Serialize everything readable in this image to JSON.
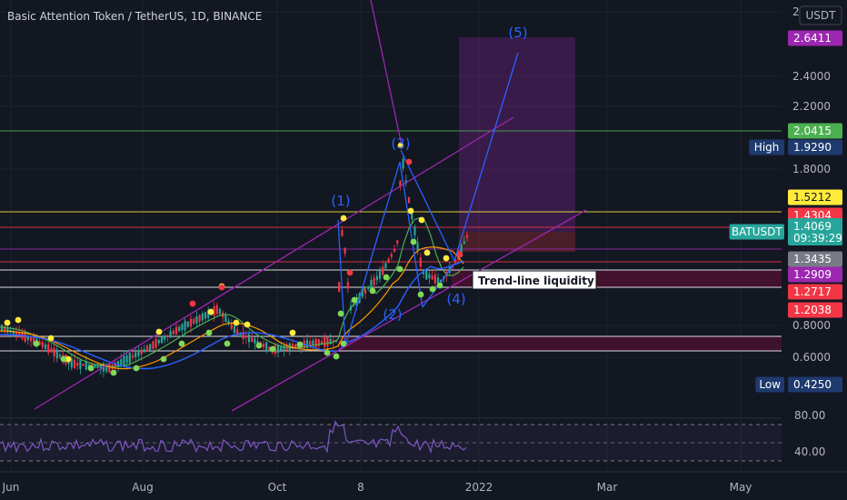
{
  "header": {
    "title": "Basic Attention Token / TetherUS, 1D, BINANCE",
    "currency": "USDT"
  },
  "colors": {
    "bg": "#131722",
    "grid": "#1e222d",
    "text": "#b2b5be",
    "purple": "#9c27b0",
    "blue": "#2962ff",
    "green": "#4caf50",
    "yellow": "#ffeb3b",
    "red": "#f23645",
    "teal": "#26a69a",
    "navy": "#1e3a6e",
    "grey": "#787b86",
    "maroon": "#4a1030",
    "lightgreen": "#7ed957"
  },
  "chart_data": {
    "type": "candlestick",
    "xaxis": {
      "tick_labels": [
        "Jun",
        "Aug",
        "Oct",
        "8",
        "2022",
        "Mar",
        "May"
      ]
    },
    "yaxis": {
      "tick_labels": [
        "2.6000",
        "2.4000",
        "2.2000",
        "1.8000",
        "0.8000",
        "0.6000"
      ],
      "scale": "log"
    },
    "price_labels": [
      {
        "text": "2.6411",
        "color": "purple"
      },
      {
        "text": "2.0415",
        "color": "green"
      },
      {
        "text": "1.9290",
        "color": "navy",
        "tag": "High"
      },
      {
        "text": "1.5212",
        "color": "yellow"
      },
      {
        "text": "1.4304",
        "color": "red"
      },
      {
        "text": "1.4069",
        "sub": "09:39:29",
        "color": "teal",
        "tag": "BATUSDT"
      },
      {
        "text": "1.3435",
        "color": "grey"
      },
      {
        "text": "1.2909",
        "color": "purple"
      },
      {
        "text": "1.2717",
        "color": "red"
      },
      {
        "text": "1.2038",
        "color": "red"
      },
      {
        "text": "0.4250",
        "color": "navy",
        "tag": "Low"
      }
    ],
    "wave_labels": [
      "(1)",
      "(2)",
      "(3)",
      "(4)",
      "(5)"
    ],
    "annotations": [
      "Trend-line liquidity"
    ],
    "rsi": {
      "tick_labels": [
        "80.00",
        "40.00"
      ]
    }
  }
}
